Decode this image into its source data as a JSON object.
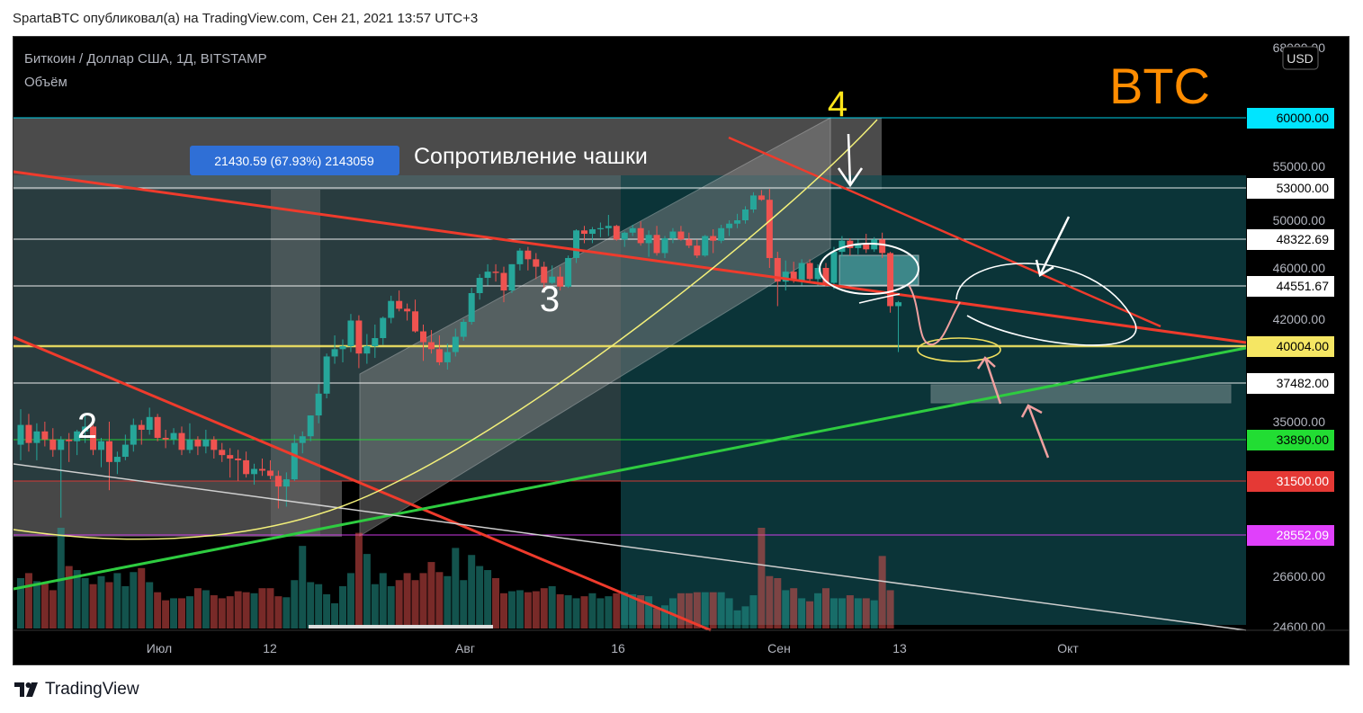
{
  "caption": "SpartaBTC опубликовал(а) на TradingView.com, Сен 21, 2021 13:57 UTC+3",
  "symbol": "Биткоин / Доллар США, 1Д, BITSTAMP",
  "volume_label": "Объём",
  "currency": "USD",
  "big_label": "BTC",
  "measure_label": "21430.59 (67.93%) 2143059",
  "resistance_label": "Сопротивление чашки",
  "wave_labels": {
    "w2": "2",
    "w3": "3",
    "w4": "4"
  },
  "brand": "TradingView",
  "colors": {
    "up": "#26a69a",
    "down": "#ef5350",
    "trend_red": "#ef3b2c",
    "trend_green": "#2ecc40",
    "level_yellow": "#f0f06a",
    "btc_orange": "#ff8c00"
  },
  "chart_data": {
    "type": "candlestick",
    "x_ticks": [
      "Июл",
      "12",
      "Авг",
      "16",
      "Сен",
      "13",
      "Окт"
    ],
    "y_ticks": [
      "68000.00",
      "55000.00",
      "50000.00",
      "46000.00",
      "42000.00",
      "35000.00",
      "26600.00",
      "24600.00"
    ],
    "price_levels": [
      {
        "value": "60000.00",
        "color": "#00e5ff",
        "text_color": "#000000"
      },
      {
        "value": "53000.00",
        "color": "#ffffff",
        "text_color": "#000000"
      },
      {
        "value": "48322.69",
        "color": "#ffffff",
        "text_color": "#000000"
      },
      {
        "value": "44551.67",
        "color": "#ffffff",
        "text_color": "#000000"
      },
      {
        "value": "40004.00",
        "color": "#f5e663",
        "text_color": "#000000"
      },
      {
        "value": "37482.00",
        "color": "#ffffff",
        "text_color": "#000000"
      },
      {
        "value": "33890.00",
        "color": "#22dd33",
        "text_color": "#000000"
      },
      {
        "value": "31500.00",
        "color": "#e53935",
        "text_color": "#ffffff"
      },
      {
        "value": "28552.09",
        "color": "#e040fb",
        "text_color": "#ffffff"
      }
    ],
    "ohlc": [
      [
        33600,
        35800,
        32700,
        34800
      ],
      [
        34800,
        35500,
        33200,
        33700
      ],
      [
        33700,
        34900,
        32700,
        34400
      ],
      [
        34400,
        35000,
        33500,
        33900
      ],
      [
        33900,
        34600,
        32900,
        33300
      ],
      [
        33300,
        34100,
        29500,
        33900
      ],
      [
        33900,
        34300,
        32600,
        33800
      ],
      [
        33800,
        34500,
        33000,
        34400
      ],
      [
        34400,
        35400,
        33700,
        34700
      ],
      [
        34700,
        34800,
        33000,
        33300
      ],
      [
        33300,
        34000,
        32300,
        33800
      ],
      [
        33800,
        35000,
        31000,
        32600
      ],
      [
        32600,
        33200,
        31900,
        32900
      ],
      [
        32900,
        34200,
        32700,
        33600
      ],
      [
        33600,
        35200,
        33200,
        34800
      ],
      [
        34800,
        35100,
        33600,
        34500
      ],
      [
        34500,
        35900,
        34200,
        35300
      ],
      [
        35300,
        35500,
        33800,
        34000
      ],
      [
        34000,
        34500,
        33400,
        33900
      ],
      [
        33900,
        34600,
        33600,
        34300
      ],
      [
        34300,
        34700,
        33000,
        33300
      ],
      [
        33300,
        34900,
        33100,
        33900
      ],
      [
        33900,
        34100,
        33000,
        33500
      ],
      [
        33500,
        34500,
        33100,
        33900
      ],
      [
        33900,
        34100,
        32800,
        33300
      ],
      [
        33300,
        33700,
        32600,
        33000
      ],
      [
        33000,
        33400,
        31700,
        32800
      ],
      [
        32800,
        33300,
        31500,
        32700
      ],
      [
        32700,
        33200,
        31700,
        31900
      ],
      [
        31900,
        32500,
        31300,
        32200
      ],
      [
        32200,
        32800,
        31800,
        32100
      ],
      [
        32100,
        32700,
        31600,
        31800
      ],
      [
        31800,
        32100,
        30000,
        31200
      ],
      [
        31200,
        32000,
        30100,
        31600
      ],
      [
        31600,
        34200,
        31500,
        33700
      ],
      [
        33700,
        34400,
        33100,
        34100
      ],
      [
        34100,
        35400,
        33800,
        35400
      ],
      [
        35400,
        37400,
        34900,
        36800
      ],
      [
        36800,
        39500,
        36500,
        39300
      ],
      [
        39300,
        40800,
        38800,
        39800
      ],
      [
        39800,
        40500,
        38900,
        40000
      ],
      [
        40000,
        42400,
        39600,
        41900
      ],
      [
        41900,
        42300,
        38500,
        39500
      ],
      [
        39500,
        40900,
        38800,
        40000
      ],
      [
        40000,
        41600,
        39200,
        40600
      ],
      [
        40600,
        42200,
        40100,
        42100
      ],
      [
        42100,
        43800,
        41700,
        43400
      ],
      [
        43400,
        44200,
        42600,
        42800
      ],
      [
        42800,
        43200,
        41900,
        42600
      ],
      [
        42600,
        43500,
        41000,
        41100
      ],
      [
        41100,
        41600,
        39000,
        40300
      ],
      [
        40300,
        41200,
        39500,
        39800
      ],
      [
        39800,
        40800,
        38700,
        38900
      ],
      [
        38900,
        40200,
        38400,
        39600
      ],
      [
        39600,
        41300,
        39300,
        40700
      ],
      [
        40700,
        42000,
        40400,
        41800
      ],
      [
        41800,
        44400,
        41600,
        44000
      ],
      [
        44000,
        45500,
        43500,
        45200
      ],
      [
        45200,
        46300,
        44600,
        45700
      ],
      [
        45700,
        46300,
        44900,
        45600
      ],
      [
        45600,
        46100,
        43300,
        44200
      ],
      [
        44200,
        46300,
        44000,
        46300
      ],
      [
        46300,
        47600,
        45800,
        47400
      ],
      [
        47400,
        47700,
        45800,
        46700
      ],
      [
        46700,
        47200,
        45100,
        46100
      ],
      [
        46100,
        46500,
        44200,
        44800
      ],
      [
        44800,
        46200,
        44700,
        45300
      ],
      [
        45300,
        46100,
        44200,
        44500
      ],
      [
        44500,
        47000,
        44400,
        46800
      ],
      [
        46800,
        49200,
        46400,
        49100
      ],
      [
        49100,
        49500,
        48000,
        48800
      ],
      [
        48800,
        49400,
        48000,
        49200
      ],
      [
        49200,
        49800,
        48500,
        49300
      ],
      [
        49300,
        50500,
        48600,
        49500
      ],
      [
        49500,
        49600,
        48200,
        48300
      ],
      [
        48300,
        49000,
        47700,
        48900
      ],
      [
        48900,
        49600,
        48600,
        49300
      ],
      [
        49300,
        49900,
        47800,
        48000
      ],
      [
        48000,
        49100,
        46900,
        48700
      ],
      [
        48700,
        49500,
        47000,
        47200
      ],
      [
        47200,
        48600,
        46800,
        48400
      ],
      [
        48400,
        49300,
        48000,
        49000
      ],
      [
        49000,
        49500,
        48200,
        48300
      ],
      [
        48300,
        48900,
        47600,
        47800
      ],
      [
        47800,
        48300,
        46800,
        47000
      ],
      [
        47000,
        48700,
        46900,
        48600
      ],
      [
        48600,
        49200,
        47200,
        48200
      ],
      [
        48200,
        49600,
        48000,
        49300
      ],
      [
        49300,
        50000,
        48600,
        49700
      ],
      [
        49700,
        50600,
        49300,
        50000
      ],
      [
        50000,
        51300,
        49700,
        51000
      ],
      [
        51000,
        52600,
        50700,
        52300
      ],
      [
        52300,
        52800,
        51800,
        51900
      ],
      [
        51900,
        52900,
        46000,
        46800
      ],
      [
        46800,
        47300,
        43000,
        44900
      ],
      [
        44900,
        46600,
        44200,
        45700
      ],
      [
        45700,
        46500,
        44800,
        45000
      ],
      [
        45000,
        46700,
        44600,
        46400
      ],
      [
        46400,
        46700,
        44900,
        45100
      ],
      [
        45100,
        46300,
        44600,
        46000
      ],
      [
        46000,
        46400,
        44500,
        44800
      ],
      [
        44800,
        47700,
        44300,
        47300
      ],
      [
        47300,
        48600,
        46900,
        48200
      ],
      [
        48200,
        48400,
        47000,
        47600
      ],
      [
        47600,
        48300,
        47100,
        48000
      ],
      [
        48000,
        48800,
        47200,
        47500
      ],
      [
        47500,
        48500,
        47300,
        48300
      ],
      [
        48300,
        48900,
        46800,
        47200
      ],
      [
        47200,
        47300,
        42500,
        43000
      ],
      [
        43000,
        43400,
        39600,
        43300
      ]
    ],
    "volumes": [
      0.5,
      0.55,
      0.47,
      0.45,
      0.38,
      1.0,
      0.62,
      0.58,
      0.5,
      0.44,
      0.52,
      0.46,
      0.55,
      0.42,
      0.56,
      0.6,
      0.46,
      0.36,
      0.28,
      0.3,
      0.3,
      0.32,
      0.4,
      0.38,
      0.33,
      0.3,
      0.32,
      0.37,
      0.36,
      0.35,
      0.4,
      0.4,
      0.32,
      0.31,
      0.48,
      0.82,
      0.46,
      0.44,
      0.34,
      0.25,
      0.42,
      0.55,
      0.95,
      0.74,
      0.44,
      0.55,
      0.42,
      0.48,
      0.55,
      0.48,
      0.55,
      0.66,
      0.56,
      0.52,
      0.8,
      0.48,
      0.73,
      0.62,
      0.58,
      0.5,
      0.35,
      0.37,
      0.38,
      0.36,
      0.37,
      0.4,
      0.42,
      0.34,
      0.33,
      0.3,
      0.32,
      0.35,
      0.3,
      0.32,
      0.35,
      0.36,
      0.34,
      0.33,
      0.32,
      0.2,
      0.23,
      0.3,
      0.35,
      0.35,
      0.36,
      0.36,
      0.36,
      0.36,
      0.3,
      0.18,
      0.22,
      0.33,
      1.0,
      0.52,
      0.5,
      0.38,
      0.4,
      0.3,
      0.27,
      0.35,
      0.4,
      0.3,
      0.3,
      0.33,
      0.3,
      0.3,
      0.28,
      0.72,
      0.38
    ]
  }
}
